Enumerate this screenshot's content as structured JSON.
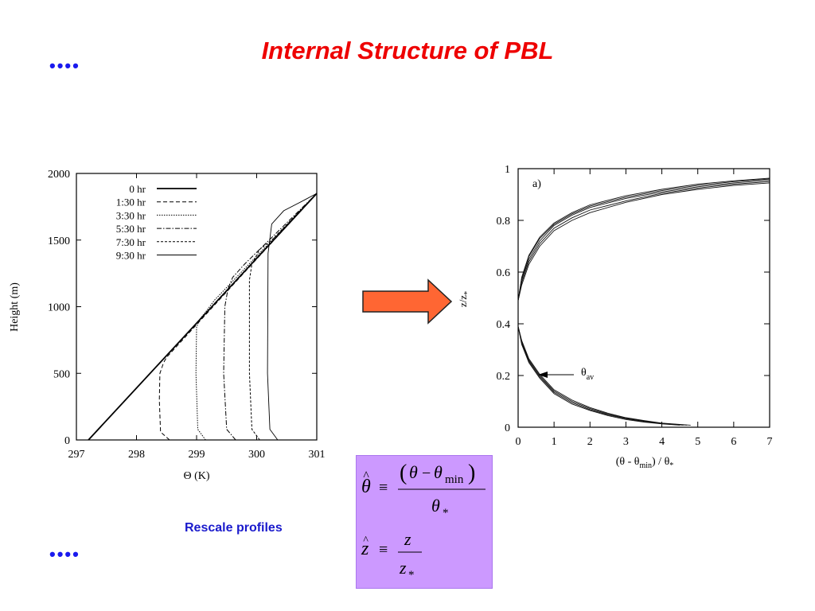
{
  "slide": {
    "title": "Internal Structure of PBL",
    "bullet_top": "••••",
    "bullet_bottom": "••••",
    "caption": "Rescale profiles",
    "arrow_color": "#ff6633"
  },
  "formula": {
    "theta_hat": "θ̂",
    "equiv": "≡",
    "theta_num_open": "(",
    "theta": "θ",
    "minus": "−",
    "theta_min": "θ",
    "min_sub": "min",
    "theta_num_close": ")",
    "theta_star": "θ",
    "star": "*",
    "z_hat": "ẑ",
    "z": "z",
    "z_star": "z",
    "z_star_sub": "*"
  },
  "chart_data": [
    {
      "type": "line",
      "xlabel": "Θ (K)",
      "ylabel": "Height (m)",
      "xlim": [
        297,
        301
      ],
      "ylim": [
        0,
        2000
      ],
      "xticks": [
        "297",
        "298",
        "299",
        "300",
        "301"
      ],
      "yticks": [
        "0",
        "500",
        "1000",
        "1500",
        "2000"
      ],
      "legend_position": "top-left",
      "series": [
        {
          "name": "0 hr",
          "style": "solid-thick",
          "points": [
            [
              297.2,
              0
            ],
            [
              301,
              1850
            ]
          ]
        },
        {
          "name": "1:30 hr",
          "style": "dashed",
          "points": [
            [
              298.55,
              0
            ],
            [
              298.4,
              60
            ],
            [
              298.38,
              300
            ],
            [
              298.39,
              500
            ],
            [
              298.45,
              580
            ],
            [
              298.5,
              620
            ],
            [
              301,
              1850
            ]
          ]
        },
        {
          "name": "3:30 hr",
          "style": "dotted",
          "points": [
            [
              299.15,
              0
            ],
            [
              299.02,
              80
            ],
            [
              298.99,
              500
            ],
            [
              299.0,
              850
            ],
            [
              299.06,
              910
            ],
            [
              299.15,
              960
            ],
            [
              299.3,
              1050
            ],
            [
              301,
              1850
            ]
          ]
        },
        {
          "name": "5:30 hr",
          "style": "dashdot",
          "points": [
            [
              299.65,
              0
            ],
            [
              299.5,
              80
            ],
            [
              299.45,
              500
            ],
            [
              299.47,
              1000
            ],
            [
              299.52,
              1130
            ],
            [
              299.6,
              1220
            ],
            [
              299.8,
              1320
            ],
            [
              301,
              1850
            ]
          ]
        },
        {
          "name": "7:30 hr",
          "style": "shortdash",
          "points": [
            [
              300.05,
              0
            ],
            [
              299.92,
              80
            ],
            [
              299.88,
              500
            ],
            [
              299.88,
              1200
            ],
            [
              299.92,
              1320
            ],
            [
              300.05,
              1430
            ],
            [
              300.25,
              1500
            ],
            [
              301,
              1850
            ]
          ]
        },
        {
          "name": "9:30 hr",
          "style": "thin",
          "points": [
            [
              300.35,
              0
            ],
            [
              300.22,
              80
            ],
            [
              300.18,
              500
            ],
            [
              300.19,
              1400
            ],
            [
              300.25,
              1620
            ],
            [
              300.45,
              1720
            ],
            [
              300.75,
              1790
            ],
            [
              301,
              1850
            ]
          ]
        }
      ]
    },
    {
      "type": "line",
      "panel_label": "a)",
      "xlabel": "(θ - θmin) / θ*",
      "ylabel": "z/z*",
      "xlim": [
        0,
        7
      ],
      "ylim": [
        0,
        1
      ],
      "xticks": [
        "0",
        "1",
        "2",
        "3",
        "4",
        "5",
        "6",
        "7"
      ],
      "yticks": [
        "0",
        "0.2",
        "0.4",
        "0.6",
        "0.8",
        "1"
      ],
      "annotation": "θav",
      "annotation_sub": "av",
      "upper_curves": [
        [
          [
            0,
            0.49
          ],
          [
            0.1,
            0.55
          ],
          [
            0.3,
            0.63
          ],
          [
            0.6,
            0.7
          ],
          [
            1.0,
            0.76
          ],
          [
            1.5,
            0.8
          ],
          [
            2.0,
            0.83
          ],
          [
            3.0,
            0.87
          ],
          [
            4.0,
            0.9
          ],
          [
            5.0,
            0.92
          ],
          [
            6.0,
            0.935
          ],
          [
            7.0,
            0.945
          ]
        ],
        [
          [
            0,
            0.49
          ],
          [
            0.1,
            0.56
          ],
          [
            0.3,
            0.64
          ],
          [
            0.6,
            0.71
          ],
          [
            1.0,
            0.77
          ],
          [
            1.5,
            0.81
          ],
          [
            2.0,
            0.84
          ],
          [
            3.0,
            0.875
          ],
          [
            4.0,
            0.905
          ],
          [
            5.0,
            0.925
          ],
          [
            6.0,
            0.94
          ],
          [
            7.0,
            0.95
          ]
        ],
        [
          [
            0,
            0.49
          ],
          [
            0.1,
            0.57
          ],
          [
            0.3,
            0.65
          ],
          [
            0.6,
            0.72
          ],
          [
            1.0,
            0.78
          ],
          [
            1.5,
            0.82
          ],
          [
            2.0,
            0.85
          ],
          [
            3.0,
            0.885
          ],
          [
            4.0,
            0.91
          ],
          [
            5.0,
            0.93
          ],
          [
            6.0,
            0.945
          ],
          [
            7.0,
            0.955
          ]
        ],
        [
          [
            0,
            0.49
          ],
          [
            0.1,
            0.575
          ],
          [
            0.3,
            0.66
          ],
          [
            0.6,
            0.73
          ],
          [
            1.0,
            0.785
          ],
          [
            1.5,
            0.825
          ],
          [
            2.0,
            0.855
          ],
          [
            3.0,
            0.89
          ],
          [
            4.0,
            0.915
          ],
          [
            5.0,
            0.935
          ],
          [
            6.0,
            0.95
          ],
          [
            7.0,
            0.96
          ]
        ],
        [
          [
            0,
            0.49
          ],
          [
            0.1,
            0.58
          ],
          [
            0.3,
            0.665
          ],
          [
            0.6,
            0.735
          ],
          [
            1.0,
            0.79
          ],
          [
            1.5,
            0.83
          ],
          [
            2.0,
            0.86
          ],
          [
            3.0,
            0.895
          ],
          [
            4.0,
            0.92
          ],
          [
            5.0,
            0.94
          ],
          [
            6.0,
            0.953
          ],
          [
            7.0,
            0.963
          ]
        ]
      ],
      "lower_curves": [
        [
          [
            0,
            0.39
          ],
          [
            0.1,
            0.32
          ],
          [
            0.3,
            0.25
          ],
          [
            0.6,
            0.19
          ],
          [
            1.0,
            0.13
          ],
          [
            1.5,
            0.09
          ],
          [
            2.0,
            0.065
          ],
          [
            2.5,
            0.045
          ],
          [
            3.0,
            0.03
          ],
          [
            3.5,
            0.02
          ],
          [
            4.0,
            0.013
          ],
          [
            4.5,
            0.008
          ]
        ],
        [
          [
            0,
            0.39
          ],
          [
            0.1,
            0.325
          ],
          [
            0.3,
            0.255
          ],
          [
            0.6,
            0.195
          ],
          [
            1.0,
            0.135
          ],
          [
            1.5,
            0.095
          ],
          [
            2.0,
            0.068
          ],
          [
            2.5,
            0.048
          ],
          [
            3.0,
            0.033
          ],
          [
            3.5,
            0.022
          ],
          [
            4.0,
            0.014
          ],
          [
            4.6,
            0.008
          ]
        ],
        [
          [
            0,
            0.39
          ],
          [
            0.1,
            0.33
          ],
          [
            0.3,
            0.26
          ],
          [
            0.6,
            0.2
          ],
          [
            1.0,
            0.14
          ],
          [
            1.5,
            0.1
          ],
          [
            2.0,
            0.072
          ],
          [
            2.5,
            0.051
          ],
          [
            3.0,
            0.035
          ],
          [
            3.5,
            0.024
          ],
          [
            4.0,
            0.015
          ],
          [
            4.7,
            0.008
          ]
        ],
        [
          [
            0,
            0.39
          ],
          [
            0.1,
            0.335
          ],
          [
            0.3,
            0.265
          ],
          [
            0.6,
            0.205
          ],
          [
            1.0,
            0.145
          ],
          [
            1.5,
            0.105
          ],
          [
            2.0,
            0.076
          ],
          [
            2.5,
            0.054
          ],
          [
            3.0,
            0.037
          ],
          [
            3.5,
            0.026
          ],
          [
            4.0,
            0.016
          ],
          [
            4.8,
            0.008
          ]
        ]
      ]
    }
  ]
}
